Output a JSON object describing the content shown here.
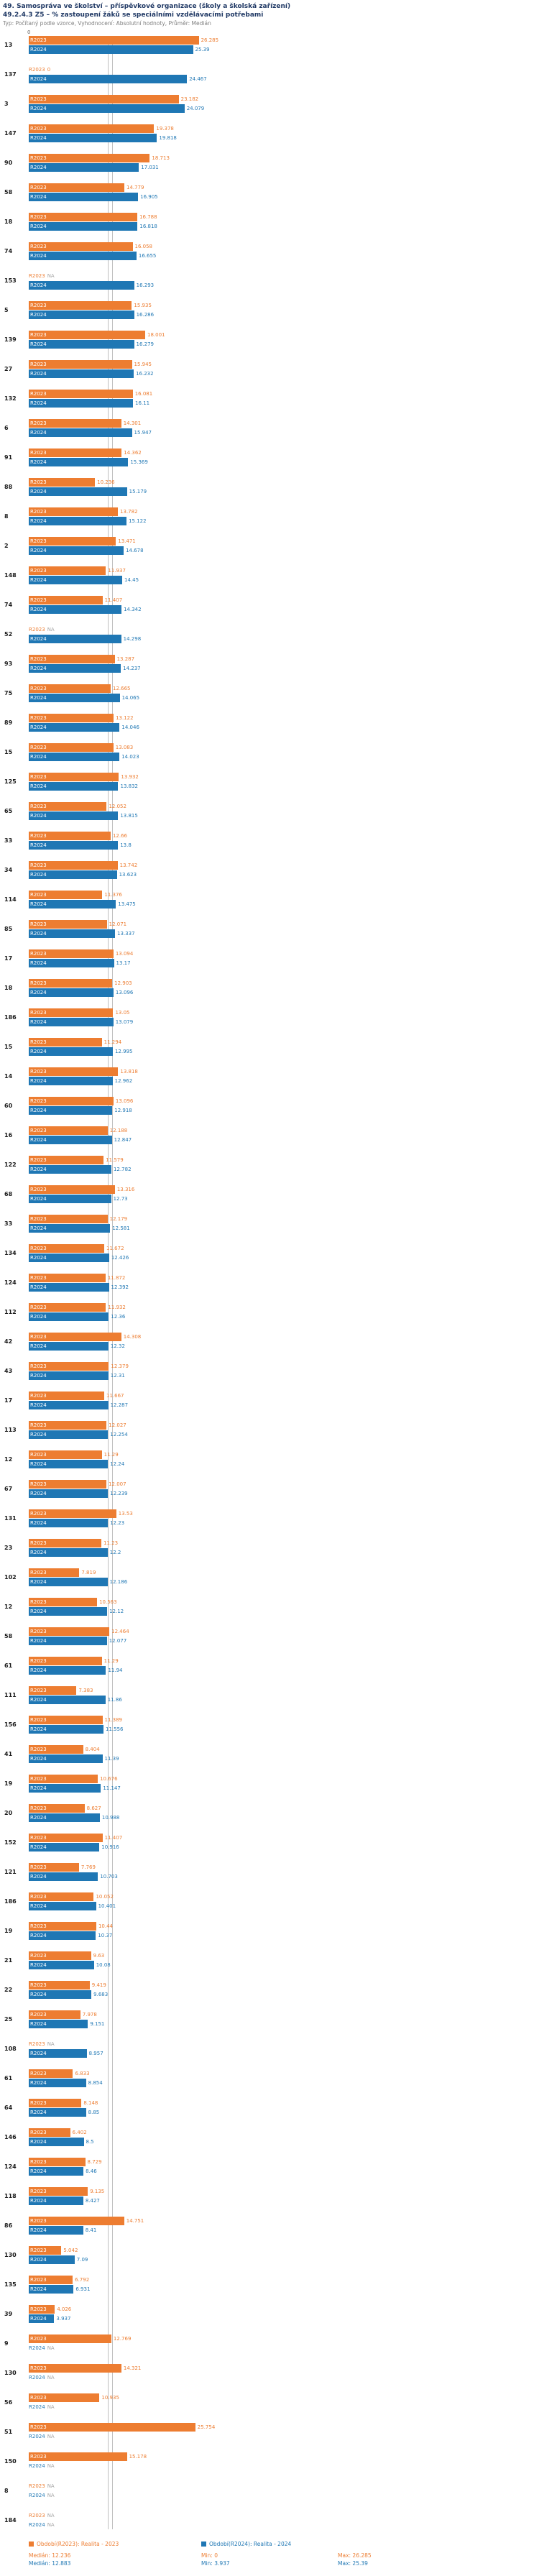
{
  "header": {
    "title_line1": "49. Samospráva ve školství – příspěvkové organizace (školy a školská zařízení)",
    "title_line2": "49.2.4.3 Z5 – % zastoupení žáků se speciálními vzdělávacími potřebami",
    "subtitle": "Typ: Počítaný podle vzorce, Vyhodnocení: Absolutní hodnoty, Průměr: Medián"
  },
  "colors": {
    "r2023": "#ed7d31",
    "r2024": "#1f77b4",
    "median_line": "#bfbfbf",
    "na_text": "#a6a6a6",
    "title": "#1f3864",
    "subtitle": "#808080"
  },
  "axis": {
    "zero_label": "0"
  },
  "chart_data": {
    "type": "bar",
    "orientation": "horizontal",
    "value_unit": "%",
    "na_label": "NA",
    "series": [
      {
        "key": "v23",
        "label": "R2023",
        "name": "Období(R2023): Realita - 2023",
        "color": "#ed7d31",
        "median": 12.236,
        "min": 0,
        "max": 26.285
      },
      {
        "key": "v24",
        "label": "R2024",
        "name": "Období(R2024): Realita - 2024",
        "color": "#1f77b4",
        "median": 12.883,
        "min": 3.937,
        "max": 25.39
      }
    ],
    "rows": [
      {
        "id": "13",
        "v23": 26.285,
        "v24": 25.39
      },
      {
        "id": "137",
        "v23": 0,
        "v24": 24.467
      },
      {
        "id": "3",
        "v23": 23.182,
        "v24": 24.079
      },
      {
        "id": "147",
        "v23": 19.378,
        "v24": 19.818
      },
      {
        "id": "90",
        "v23": 18.713,
        "v24": 17.031
      },
      {
        "id": "58",
        "v23": 14.779,
        "v24": 16.905
      },
      {
        "id": "18",
        "v23": 16.788,
        "v24": 16.818
      },
      {
        "id": "74",
        "v23": 16.058,
        "v24": 16.655
      },
      {
        "id": "153",
        "v23": null,
        "v24": 16.293
      },
      {
        "id": "5",
        "v23": 15.935,
        "v24": 16.286
      },
      {
        "id": "139",
        "v23": 18.001,
        "v24": 16.279
      },
      {
        "id": "27",
        "v23": 15.945,
        "v24": 16.232
      },
      {
        "id": "132",
        "v23": 16.081,
        "v24": 16.11
      },
      {
        "id": "6",
        "v23": 14.301,
        "v24": 15.947
      },
      {
        "id": "91",
        "v23": 14.362,
        "v24": 15.369
      },
      {
        "id": "88",
        "v23": 10.236,
        "v24": 15.179
      },
      {
        "id": "8",
        "v23": 13.782,
        "v24": 15.122
      },
      {
        "id": "2",
        "v23": 13.471,
        "v24": 14.678
      },
      {
        "id": "148",
        "v23": 11.937,
        "v24": 14.45
      },
      {
        "id": "74",
        "v23": 11.407,
        "v24": 14.342
      },
      {
        "id": "52",
        "v23": null,
        "v24": 14.298
      },
      {
        "id": "93",
        "v23": 13.287,
        "v24": 14.237
      },
      {
        "id": "75",
        "v23": 12.665,
        "v24": 14.065
      },
      {
        "id": "89",
        "v23": 13.122,
        "v24": 14.046
      },
      {
        "id": "15",
        "v23": 13.083,
        "v24": 14.023
      },
      {
        "id": "125",
        "v23": 13.932,
        "v24": 13.832
      },
      {
        "id": "65",
        "v23": 12.052,
        "v24": 13.815
      },
      {
        "id": "33",
        "v23": 12.66,
        "v24": 13.8
      },
      {
        "id": "34",
        "v23": 13.742,
        "v24": 13.623
      },
      {
        "id": "114",
        "v23": 11.376,
        "v24": 13.475
      },
      {
        "id": "85",
        "v23": 12.071,
        "v24": 13.337
      },
      {
        "id": "17",
        "v23": 13.094,
        "v24": 13.17
      },
      {
        "id": "18",
        "v23": 12.903,
        "v24": 13.096
      },
      {
        "id": "186",
        "v23": 13.05,
        "v24": 13.079
      },
      {
        "id": "15",
        "v23": 11.294,
        "v24": 12.995
      },
      {
        "id": "14",
        "v23": 13.818,
        "v24": 12.962
      },
      {
        "id": "60",
        "v23": 13.096,
        "v24": 12.918
      },
      {
        "id": "16",
        "v23": 12.188,
        "v24": 12.847
      },
      {
        "id": "122",
        "v23": 11.579,
        "v24": 12.782
      },
      {
        "id": "68",
        "v23": 13.316,
        "v24": 12.73
      },
      {
        "id": "33",
        "v23": 12.179,
        "v24": 12.581
      },
      {
        "id": "134",
        "v23": 11.672,
        "v24": 12.426
      },
      {
        "id": "124",
        "v23": 11.872,
        "v24": 12.392
      },
      {
        "id": "112",
        "v23": 11.932,
        "v24": 12.36
      },
      {
        "id": "42",
        "v23": 14.308,
        "v24": 12.32
      },
      {
        "id": "43",
        "v23": 12.379,
        "v24": 12.31
      },
      {
        "id": "17",
        "v23": 11.667,
        "v24": 12.287
      },
      {
        "id": "113",
        "v23": 12.027,
        "v24": 12.254
      },
      {
        "id": "12",
        "v23": 11.29,
        "v24": 12.24
      },
      {
        "id": "67",
        "v23": 12.007,
        "v24": 12.239
      },
      {
        "id": "131",
        "v23": 13.53,
        "v24": 12.23
      },
      {
        "id": "23",
        "v23": 11.23,
        "v24": 12.2
      },
      {
        "id": "102",
        "v23": 7.819,
        "v24": 12.186
      },
      {
        "id": "12",
        "v23": 10.563,
        "v24": 12.12
      },
      {
        "id": "58",
        "v23": 12.464,
        "v24": 12.077
      },
      {
        "id": "61",
        "v23": 11.29,
        "v24": 11.94
      },
      {
        "id": "111",
        "v23": 7.383,
        "v24": 11.86
      },
      {
        "id": "156",
        "v23": 11.389,
        "v24": 11.556
      },
      {
        "id": "41",
        "v23": 8.404,
        "v24": 11.39
      },
      {
        "id": "19",
        "v23": 10.676,
        "v24": 11.147
      },
      {
        "id": "20",
        "v23": 8.627,
        "v24": 10.988
      },
      {
        "id": "152",
        "v23": 11.407,
        "v24": 10.916
      },
      {
        "id": "121",
        "v23": 7.769,
        "v24": 10.703
      },
      {
        "id": "186",
        "v23": 10.052,
        "v24": 10.401
      },
      {
        "id": "19",
        "v23": 10.44,
        "v24": 10.37
      },
      {
        "id": "21",
        "v23": 9.63,
        "v24": 10.08
      },
      {
        "id": "22",
        "v23": 9.419,
        "v24": 9.683
      },
      {
        "id": "25",
        "v23": 7.978,
        "v24": 9.151
      },
      {
        "id": "108",
        "v23": null,
        "v24": 8.957
      },
      {
        "id": "61",
        "v23": 6.833,
        "v24": 8.854
      },
      {
        "id": "64",
        "v23": 8.148,
        "v24": 8.85
      },
      {
        "id": "146",
        "v23": 6.402,
        "v24": 8.5
      },
      {
        "id": "124",
        "v23": 8.729,
        "v24": 8.46
      },
      {
        "id": "118",
        "v23": 9.135,
        "v24": 8.427
      },
      {
        "id": "86",
        "v23": 14.751,
        "v24": 8.41
      },
      {
        "id": "130",
        "v23": 5.042,
        "v24": 7.09
      },
      {
        "id": "135",
        "v23": 6.792,
        "v24": 6.931
      },
      {
        "id": "39",
        "v23": 4.026,
        "v24": 3.937
      },
      {
        "id": "9",
        "v23": 12.769,
        "v24": null
      },
      {
        "id": "130",
        "v23": 14.321,
        "v24": null
      },
      {
        "id": "56",
        "v23": 10.935,
        "v24": null
      },
      {
        "id": "51",
        "v23": 25.754,
        "v24": null
      },
      {
        "id": "150",
        "v23": 15.178,
        "v24": null
      },
      {
        "id": "8",
        "v23": null,
        "v24": null
      },
      {
        "id": "184",
        "v23": null,
        "v24": null
      }
    ]
  },
  "legend": {
    "r2023_label": "Období(R2023): Realita - 2023",
    "r2024_label": "Období(R2024): Realita - 2024"
  },
  "footer_stats": {
    "r2023": {
      "median": "Medián: 12.236",
      "min": "Min: 0",
      "max": "Max: 26.285"
    },
    "r2024": {
      "median": "Medián: 12.883",
      "min": "Min: 3.937",
      "max": "Max: 25.39"
    }
  }
}
